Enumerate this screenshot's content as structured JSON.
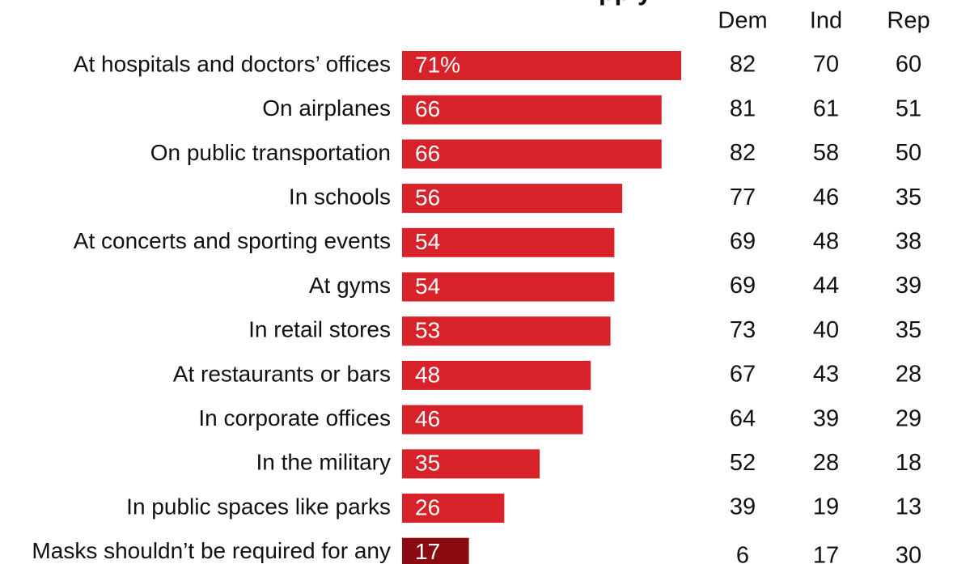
{
  "chart_data": {
    "type": "bar",
    "orientation": "horizontal",
    "categories": [
      "At hospitals and doctors’ offices",
      "On airplanes",
      "On public transportation",
      "In schools",
      "At concerts and sporting events",
      "At gyms",
      "In retail stores",
      "At restaurants or bars",
      "In corporate offices",
      "In the military",
      "In public spaces like parks",
      "Masks shouldn’t be required for any"
    ],
    "values": [
      71,
      66,
      66,
      56,
      54,
      54,
      53,
      48,
      46,
      35,
      26,
      17
    ],
    "value_labels": [
      "71%",
      "66",
      "66",
      "56",
      "54",
      "54",
      "53",
      "48",
      "46",
      "35",
      "26",
      "17"
    ],
    "xlim": [
      0,
      100
    ],
    "grid": false,
    "legend": "none",
    "colors": {
      "bar": "#d72229",
      "bar_highlight": "#8b0b10",
      "text": "#111111",
      "bar_text": "#ffffff"
    },
    "columns": [
      "Dem",
      "Ind",
      "Rep"
    ],
    "table": [
      [
        82,
        70,
        60
      ],
      [
        81,
        61,
        51
      ],
      [
        82,
        58,
        50
      ],
      [
        77,
        46,
        35
      ],
      [
        69,
        48,
        38
      ],
      [
        69,
        44,
        39
      ],
      [
        73,
        40,
        35
      ],
      [
        67,
        43,
        28
      ],
      [
        64,
        39,
        29
      ],
      [
        52,
        28,
        18
      ],
      [
        39,
        19,
        13
      ],
      [
        6,
        17,
        30
      ]
    ],
    "title": "pply"
  }
}
